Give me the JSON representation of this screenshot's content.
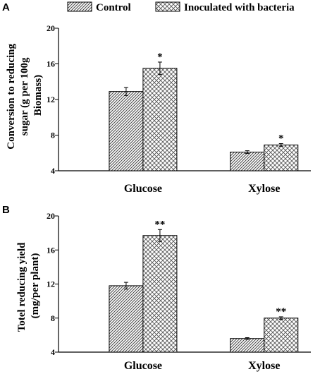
{
  "legend": {
    "control": "Control",
    "inoculated": "Inoculated with bacteria"
  },
  "chart_data": [
    {
      "type": "bar",
      "panel": "A",
      "categories": [
        "Glucose",
        "Xylose"
      ],
      "ylabel_lines": [
        "Conversion to reducing",
        "sugar (g per 100g",
        "Biomass)"
      ],
      "ylim": [
        4,
        20
      ],
      "yticks": [
        "4",
        "8",
        "12",
        "16",
        "20"
      ],
      "series": [
        {
          "name": "Control",
          "values": [
            12.9,
            6.1
          ],
          "errors": [
            0.45,
            0.15
          ]
        },
        {
          "name": "Inoculated with bacteria",
          "values": [
            15.5,
            6.9
          ],
          "errors": [
            0.7,
            0.15
          ]
        }
      ],
      "significance": [
        [
          "",
          ""
        ],
        [
          "*",
          "*"
        ]
      ]
    },
    {
      "type": "bar",
      "panel": "B",
      "categories": [
        "Glucose",
        "Xylose"
      ],
      "ylabel_lines": [
        "Totel reducing yield",
        "(mg/per plant)"
      ],
      "ylim": [
        4,
        20
      ],
      "yticks": [
        "4",
        "8",
        "12",
        "16",
        "20"
      ],
      "series": [
        {
          "name": "Control",
          "values": [
            11.8,
            5.6
          ],
          "errors": [
            0.4,
            0.1
          ]
        },
        {
          "name": "Inoculated with bacteria",
          "values": [
            17.7,
            8.0
          ],
          "errors": [
            0.7,
            0.15
          ]
        }
      ],
      "significance": [
        [
          "",
          ""
        ],
        [
          "**",
          "**"
        ]
      ]
    }
  ]
}
